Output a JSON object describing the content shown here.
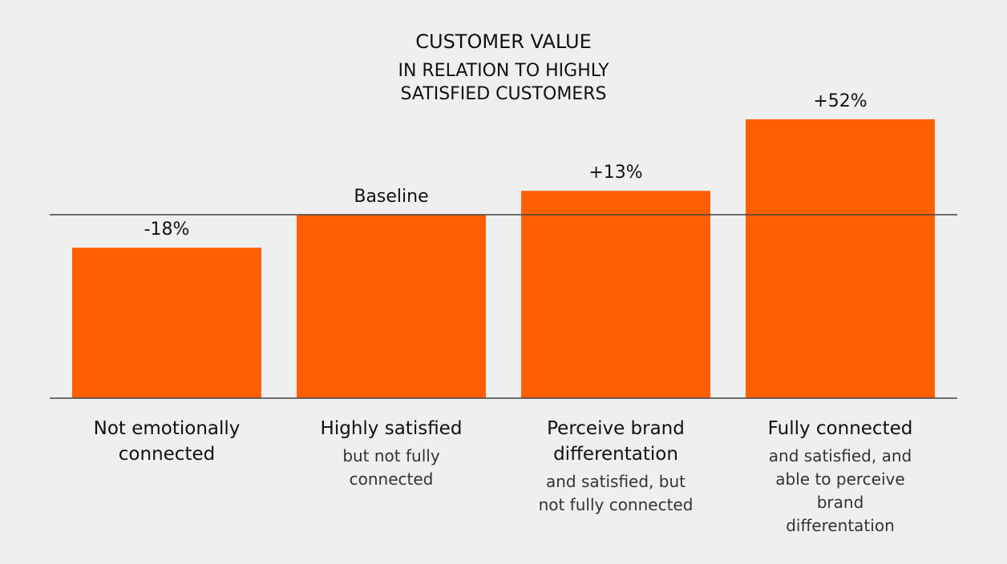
{
  "chart_data": {
    "type": "bar",
    "title": "CUSTOMER VALUE",
    "subtitle": [
      "IN RELATION TO HIGHLY",
      "SATISFIED CUSTOMERS"
    ],
    "xlabel": "",
    "ylabel": "",
    "baseline_value": 0,
    "ylim": [
      -100,
      60
    ],
    "categories": [
      {
        "main": [
          "Not emotionally",
          "connected"
        ],
        "sub": []
      },
      {
        "main": [
          "Highly satisfied"
        ],
        "sub": [
          "but not fully",
          "connected"
        ]
      },
      {
        "main": [
          "Perceive brand",
          "differentation"
        ],
        "sub": [
          "and satisfied, but",
          "not fully connected"
        ]
      },
      {
        "main": [
          "Fully connected"
        ],
        "sub": [
          "and satisfied, and",
          "able to perceive",
          "brand",
          "differentation"
        ]
      }
    ],
    "values": [
      -18,
      0,
      13,
      52
    ],
    "data_labels": [
      "-18%",
      "Baseline",
      "+13%",
      "+52%"
    ],
    "colors": {
      "bar": "#ff5f00",
      "axis": "#444444",
      "background": "#efefef"
    }
  }
}
